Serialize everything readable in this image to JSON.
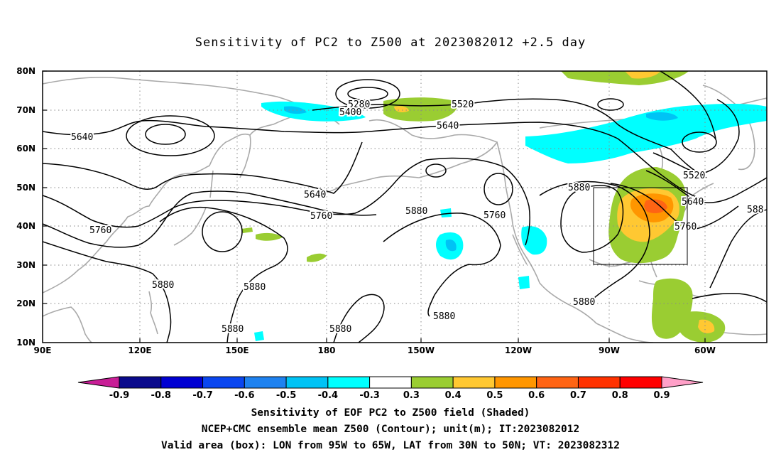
{
  "title": "Sensitivity of PC2 to Z500 at 2023082012 +2.5 day",
  "axes": {
    "lon_labels": [
      "90E",
      "120E",
      "150E",
      "180",
      "150W",
      "120W",
      "90W",
      "60W"
    ],
    "lat_labels": [
      "80N",
      "70N",
      "60N",
      "50N",
      "40N",
      "30N",
      "20N",
      "10N"
    ],
    "lon_range_deg_east": [
      90,
      313
    ],
    "lat_range_deg": [
      10,
      80
    ],
    "grid": "dotted"
  },
  "contour_labels": [
    "5280",
    "5400",
    "5520",
    "5640",
    "5640",
    "5640",
    "5760",
    "5760",
    "5760",
    "5880",
    "5880",
    "5880",
    "5880",
    "5880",
    "5880",
    "5880",
    "5880",
    "5760",
    "5640",
    "5520",
    "588"
  ],
  "colorbar": {
    "labels": [
      "-0.9",
      "-0.8",
      "-0.7",
      "-0.6",
      "-0.5",
      "-0.4",
      "-0.3",
      "0.3",
      "0.4",
      "0.5",
      "0.6",
      "0.7",
      "0.8",
      "0.9"
    ],
    "colors": [
      "#c81e96",
      "#0a0a8c",
      "#0000d2",
      "#0a46f0",
      "#1e82f0",
      "#00c3f5",
      "#00ffff",
      "#ffffff",
      "#9acd32",
      "#ffc832",
      "#ff9600",
      "#ff6414",
      "#ff3200",
      "#ff0000",
      "#ffa0c8"
    ]
  },
  "valid_box": {
    "lon_west": -95,
    "lon_east": -65,
    "lat_south": 30,
    "lat_north": 50
  },
  "captions": [
    "Sensitivity of EOF PC2 to Z500 field (Shaded)",
    "NCEP+CMC ensemble mean Z500 (Contour); unit(m); IT:2023082012",
    "Valid area (box): LON from 95W to 65W, LAT from 30N to 50N; VT: 2023082312"
  ]
}
